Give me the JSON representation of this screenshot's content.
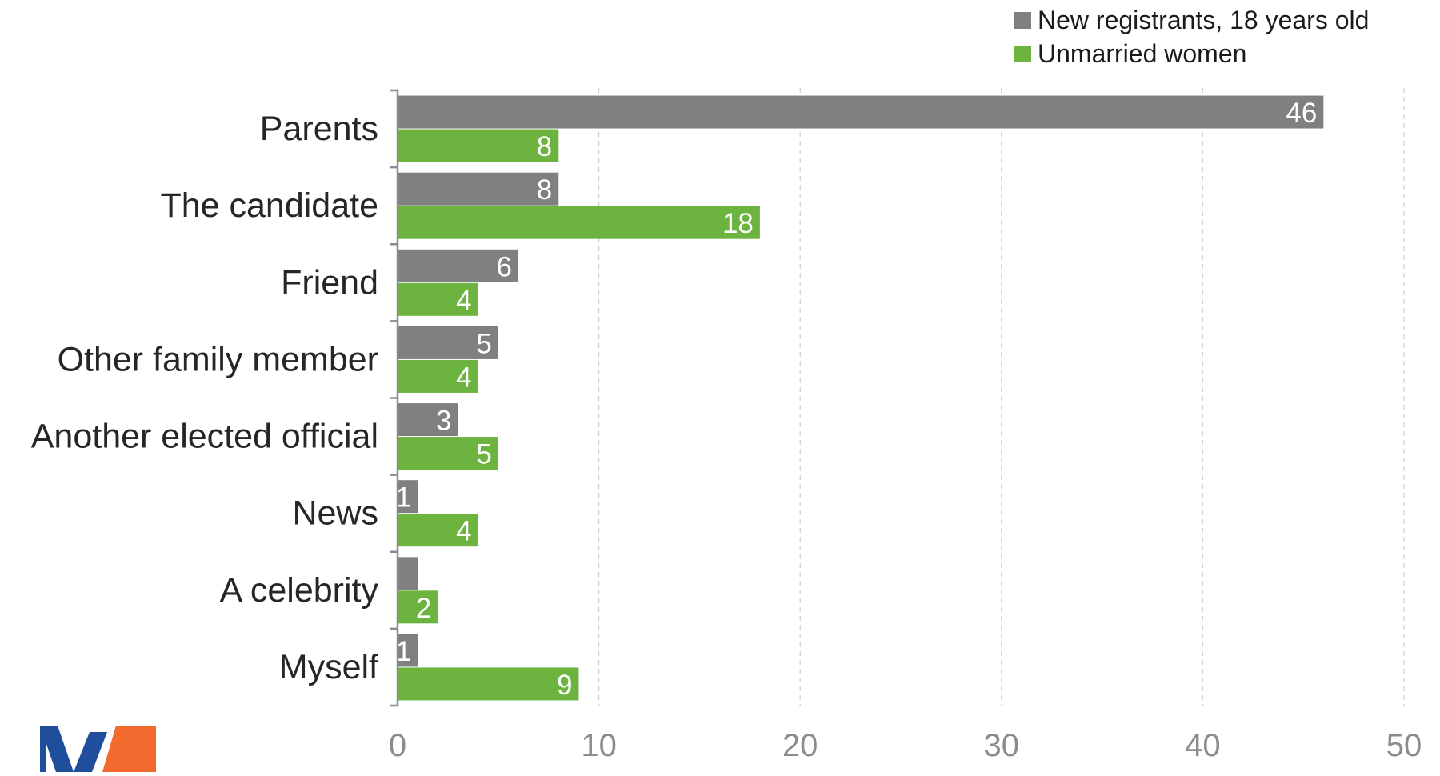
{
  "chart_data": {
    "type": "bar",
    "orientation": "horizontal",
    "categories": [
      "Parents",
      "The candidate",
      "Friend",
      "Other family member",
      "Another elected official",
      "News",
      "A celebrity",
      "Myself"
    ],
    "series": [
      {
        "name": "New registrants, 18 years old",
        "color": "#808080",
        "values": [
          46,
          8,
          6,
          5,
          3,
          1,
          1,
          1
        ],
        "labels": [
          "46",
          "8",
          "6",
          "5",
          "3",
          "1",
          "",
          "1"
        ]
      },
      {
        "name": "Unmarried women",
        "color": "#6db33f",
        "values": [
          8,
          18,
          4,
          4,
          5,
          4,
          2,
          9
        ],
        "labels": [
          "8",
          "18",
          "4",
          "4",
          "5",
          "4",
          "2",
          "9"
        ]
      }
    ],
    "xlim": [
      0,
      50
    ],
    "x_ticks": [
      "0",
      "10",
      "20",
      "30",
      "40",
      "50"
    ],
    "grid": "vertical dashed",
    "legend_position": "top-right",
    "xlabel": "",
    "ylabel": "",
    "title": ""
  },
  "logo": {
    "name": "brand-logo",
    "colors": [
      "#1f4e9c",
      "#f26a2e"
    ]
  }
}
